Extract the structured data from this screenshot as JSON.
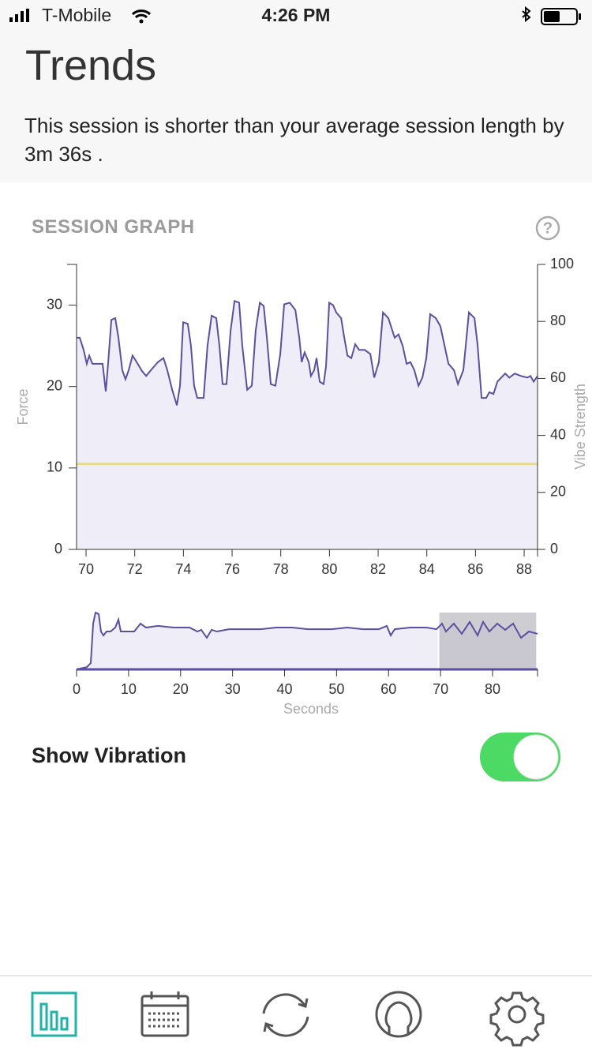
{
  "status_bar": {
    "carrier": "T-Mobile",
    "time": "4:26 PM"
  },
  "header": {
    "title": "Trends",
    "message": "This session is shorter than your average session length by 3m 36s ."
  },
  "section_title": "SESSION GRAPH",
  "chart_data": [
    {
      "type": "line",
      "xlim": [
        69.61,
        88.55
      ],
      "ylim": [
        0,
        35
      ],
      "y2lim": [
        0,
        100
      ],
      "xticks": [
        70,
        72,
        74,
        76,
        78,
        80,
        82,
        84,
        86,
        88
      ],
      "yticks": [
        0,
        10,
        20,
        30
      ],
      "y2ticks": [
        0,
        20,
        40,
        60,
        80,
        100
      ],
      "ylabel": "Force",
      "y2label": "Vibe Strength",
      "series": [
        {
          "color": "#5b4fa0",
          "fill": "#efeef8",
          "x": [
            69.61,
            69.74,
            69.9,
            70.03,
            70.13,
            70.26,
            70.68,
            70.81,
            70.91,
            71.04,
            71.2,
            71.33,
            71.49,
            71.62,
            71.75,
            71.91,
            72.08,
            72.3,
            72.47,
            72.66,
            72.95,
            73.18,
            73.34,
            73.54,
            73.73,
            73.86,
            73.99,
            74.18,
            74.31,
            74.44,
            74.57,
            74.83,
            74.99,
            75.16,
            75.35,
            75.48,
            75.61,
            75.77,
            75.94,
            76.1,
            76.29,
            76.42,
            76.62,
            76.81,
            76.97,
            77.14,
            77.3,
            77.43,
            77.59,
            77.78,
            77.98,
            78.14,
            78.37,
            78.6,
            78.76,
            78.86,
            78.98,
            79.15,
            79.24,
            79.37,
            79.47,
            79.6,
            79.76,
            79.86,
            79.99,
            80.15,
            80.28,
            80.48,
            80.61,
            80.74,
            80.9,
            81.06,
            81.22,
            81.45,
            81.68,
            81.84,
            82.03,
            82.2,
            82.42,
            82.68,
            82.84,
            83.01,
            83.17,
            83.33,
            83.49,
            83.66,
            83.82,
            83.98,
            84.14,
            84.37,
            84.56,
            84.73,
            84.89,
            85.12,
            85.28,
            85.5,
            85.6,
            85.73,
            85.96,
            86.09,
            86.25,
            86.44,
            86.57,
            86.74,
            86.9,
            87.06,
            87.22,
            87.39,
            87.61,
            87.87,
            88.13,
            88.26,
            88.39,
            88.55
          ],
          "values": [
            26.0,
            26.0,
            24.5,
            22.8,
            23.8,
            22.8,
            22.8,
            19.4,
            23.0,
            28.2,
            28.4,
            26.0,
            22.0,
            20.9,
            22.0,
            23.8,
            23.0,
            21.9,
            21.3,
            22.0,
            23.0,
            23.5,
            22.0,
            19.6,
            17.7,
            20.1,
            27.9,
            27.7,
            25.0,
            20.1,
            18.6,
            18.6,
            25.0,
            28.7,
            28.4,
            25.0,
            20.3,
            20.3,
            26.9,
            30.5,
            30.3,
            25.0,
            19.6,
            20.1,
            26.9,
            30.3,
            29.9,
            26.0,
            20.3,
            20.1,
            24.0,
            30.1,
            30.3,
            29.4,
            26.0,
            23.0,
            24.2,
            23.0,
            21.3,
            22.0,
            23.5,
            20.6,
            20.3,
            22.5,
            30.3,
            30.0,
            29.1,
            28.4,
            26.0,
            23.8,
            23.5,
            25.2,
            24.5,
            24.5,
            24.0,
            21.1,
            23.0,
            29.1,
            28.4,
            26.0,
            26.4,
            25.0,
            22.8,
            23.0,
            22.0,
            20.1,
            21.1,
            23.5,
            28.9,
            28.4,
            27.4,
            25.0,
            22.8,
            22.0,
            20.3,
            22.0,
            25.0,
            29.1,
            28.4,
            25.0,
            18.6,
            18.6,
            19.3,
            19.1,
            20.6,
            21.1,
            21.6,
            21.1,
            21.6,
            21.3,
            21.1,
            21.3,
            20.6,
            21.3
          ]
        },
        {
          "color": "#e8d98c",
          "axis": "y2",
          "x": [
            69.61,
            88.55
          ],
          "values": [
            30,
            30
          ]
        }
      ]
    },
    {
      "type": "line",
      "xlim": [
        0,
        88.65
      ],
      "ylim": [
        0,
        35
      ],
      "xticks": [
        0,
        10,
        20,
        30,
        40,
        50,
        60,
        70,
        80
      ],
      "xlabel": "Seconds",
      "brush": [
        69.61,
        88.55
      ],
      "series": [
        {
          "color": "#5b4fa0",
          "fill": "#efeef8",
          "x": [
            0,
            1.97,
            2.73,
            3.19,
            3.64,
            4.25,
            4.7,
            5.16,
            5.77,
            6.53,
            7.44,
            8.05,
            8.5,
            9.56,
            11.08,
            12.3,
            13.36,
            15.64,
            18.67,
            21.71,
            23.23,
            23.98,
            25.05,
            25.96,
            27.02,
            29.3,
            32.33,
            35.37,
            38.41,
            41.44,
            44.48,
            49.03,
            52.07,
            55.1,
            58.14,
            59.66,
            60.42,
            61.18,
            64.21,
            67.25,
            69.22,
            70.28,
            71.04,
            72.56,
            74.08,
            75.6,
            77.12,
            78.18,
            79.39,
            80.91,
            82.43,
            83.95,
            85.47,
            86.99,
            88.65
          ],
          "values": [
            0,
            1.4,
            3.8,
            27.8,
            34.5,
            33.6,
            23.0,
            20.6,
            23.0,
            23.0,
            25.4,
            30.2,
            23.0,
            23.0,
            23.0,
            27.8,
            25.4,
            26.4,
            25.4,
            25.4,
            23.0,
            24.0,
            19.2,
            24.0,
            23.0,
            24.4,
            24.4,
            24.4,
            25.4,
            25.4,
            24.4,
            24.4,
            25.4,
            24.4,
            24.4,
            26.4,
            20.6,
            24.4,
            25.4,
            25.4,
            24.4,
            27.8,
            23.0,
            27.8,
            21.6,
            28.8,
            20.6,
            28.8,
            23.0,
            27.8,
            24.0,
            27.8,
            19.2,
            23.0,
            21.6
          ]
        }
      ]
    }
  ],
  "toggle": {
    "label": "Show Vibration",
    "checked": true
  }
}
